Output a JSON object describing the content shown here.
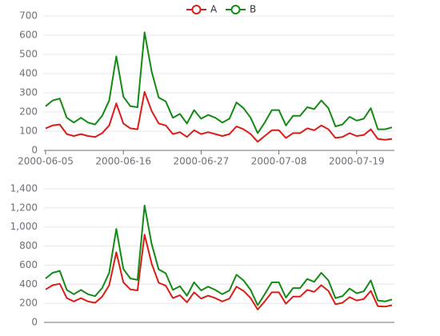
{
  "chart_data": [
    {
      "type": "line",
      "categories": [
        "2000-06-05",
        null,
        null,
        null,
        null,
        null,
        null,
        null,
        null,
        null,
        null,
        "2000-06-16",
        null,
        null,
        null,
        null,
        null,
        null,
        null,
        null,
        null,
        null,
        "2000-06-27",
        null,
        null,
        null,
        null,
        null,
        null,
        null,
        null,
        null,
        null,
        "2000-07-08",
        null,
        null,
        null,
        null,
        null,
        null,
        null,
        null,
        null,
        null,
        "2000-07-19",
        null,
        null,
        null,
        null,
        null
      ],
      "series": [
        {
          "name": "A",
          "color": "#d91e18",
          "values": [
            115,
            130,
            135,
            85,
            75,
            85,
            75,
            70,
            90,
            130,
            245,
            140,
            115,
            110,
            305,
            205,
            140,
            130,
            85,
            95,
            70,
            105,
            85,
            95,
            85,
            75,
            85,
            125,
            110,
            85,
            45,
            75,
            105,
            105,
            65,
            90,
            90,
            115,
            105,
            130,
            110,
            65,
            70,
            90,
            75,
            80,
            110,
            60,
            55,
            60
          ]
        },
        {
          "name": "B",
          "color": "#138a13",
          "values": [
            230,
            260,
            270,
            170,
            145,
            170,
            145,
            135,
            180,
            260,
            490,
            280,
            230,
            225,
            615,
            410,
            275,
            255,
            170,
            190,
            140,
            210,
            165,
            185,
            170,
            145,
            165,
            250,
            220,
            170,
            90,
            145,
            210,
            210,
            130,
            180,
            180,
            225,
            215,
            260,
            220,
            125,
            135,
            175,
            155,
            165,
            220,
            110,
            110,
            120
          ]
        }
      ],
      "ylim": [
        0,
        700
      ],
      "yticks": [
        0,
        100,
        200,
        300,
        400,
        500,
        600,
        700
      ],
      "grid": true
    },
    {
      "type": "line",
      "series": [
        {
          "name": "A",
          "color": "#d91e18",
          "values": [
            345,
            390,
            405,
            255,
            220,
            255,
            220,
            205,
            270,
            390,
            735,
            420,
            345,
            335,
            920,
            615,
            415,
            385,
            255,
            285,
            210,
            315,
            250,
            280,
            255,
            220,
            250,
            375,
            330,
            255,
            135,
            220,
            315,
            315,
            195,
            270,
            270,
            340,
            320,
            390,
            330,
            190,
            205,
            265,
            230,
            245,
            330,
            170,
            165,
            180
          ]
        },
        {
          "name": "B",
          "color": "#138a13",
          "values": [
            460,
            520,
            540,
            340,
            295,
            340,
            295,
            275,
            360,
            520,
            980,
            560,
            460,
            445,
            1225,
            820,
            555,
            515,
            340,
            380,
            280,
            420,
            335,
            375,
            340,
            295,
            335,
            500,
            440,
            340,
            180,
            295,
            420,
            420,
            260,
            360,
            360,
            455,
            425,
            520,
            440,
            255,
            275,
            355,
            305,
            325,
            440,
            230,
            220,
            240
          ]
        }
      ],
      "ylim": [
        0,
        1400
      ],
      "yticks": [
        0,
        200,
        400,
        600,
        800,
        {
          "value": 1000,
          "label": "1,000"
        },
        {
          "value": 1200,
          "label": "1,200"
        },
        {
          "value": 1400,
          "label": "1,400"
        }
      ],
      "grid": true
    }
  ]
}
